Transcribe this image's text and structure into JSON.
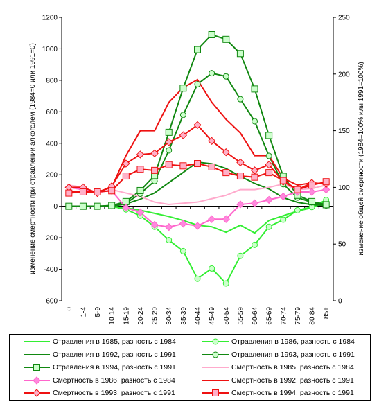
{
  "chart_data": {
    "type": "line",
    "categories": [
      "0",
      "1-4",
      "5-9",
      "10-14",
      "15-19",
      "20-24",
      "25-29",
      "30-34",
      "35-39",
      "40-44",
      "45-49",
      "50-54",
      "55-59",
      "60-64",
      "65-69",
      "70-74",
      "75-79",
      "80-84",
      "85+"
    ],
    "y_left": {
      "label": "изменение смертности при отравлении алкоголем (1984=0 или 1991=0)",
      "ylim": [
        -600,
        1200
      ],
      "ticks": [
        -600,
        -400,
        -200,
        0,
        200,
        400,
        600,
        800,
        1000,
        1200
      ]
    },
    "y_right": {
      "label": "изменение общей смертности (1984=100% или 1991=100%)",
      "ylim": [
        0,
        250
      ],
      "ticks": [
        0,
        50,
        100,
        150,
        200,
        250
      ]
    },
    "series": [
      {
        "name": "Отравления в 1985, разность с 1984",
        "axis": "left",
        "color": "#33ee33",
        "marker": "none",
        "values": [
          0,
          0,
          0,
          0,
          -10,
          -25,
          -45,
          -65,
          -90,
          -120,
          -130,
          -165,
          -120,
          -170,
          -90,
          -60,
          -30,
          -10,
          30
        ]
      },
      {
        "name": "Отравления в 1986, разность с 1984",
        "axis": "left",
        "color": "#33ee33",
        "marker": "circle",
        "values": [
          0,
          0,
          0,
          0,
          -20,
          -60,
          -130,
          -215,
          -285,
          -460,
          -395,
          -490,
          -315,
          -245,
          -130,
          -85,
          -25,
          -5,
          40
        ]
      },
      {
        "name": "Отравления в 1992, разность с 1991",
        "axis": "left",
        "color": "#118811",
        "marker": "none",
        "values": [
          0,
          0,
          0,
          0,
          15,
          45,
          85,
          150,
          215,
          280,
          270,
          240,
          190,
          145,
          110,
          55,
          25,
          10,
          5
        ]
      },
      {
        "name": "Отравления в 1993, разность с 1991",
        "axis": "left",
        "color": "#118811",
        "marker": "circle",
        "values": [
          0,
          0,
          0,
          5,
          20,
          80,
          160,
          355,
          580,
          775,
          845,
          825,
          680,
          540,
          320,
          140,
          55,
          25,
          5
        ]
      },
      {
        "name": "Отравления в 1994, разность с 1991",
        "axis": "left",
        "color": "#118811",
        "marker": "square",
        "values": [
          0,
          0,
          0,
          5,
          30,
          100,
          195,
          470,
          750,
          995,
          1090,
          1060,
          970,
          745,
          450,
          190,
          70,
          30,
          10
        ]
      },
      {
        "name": "Смертность в 1985, разность с 1984",
        "axis": "right",
        "color": "#ffaacc",
        "marker": "none",
        "values": [
          102,
          100,
          95,
          98,
          95,
          92,
          87,
          85,
          86,
          87,
          90,
          93,
          98,
          98,
          100,
          103,
          98,
          99,
          102
        ]
      },
      {
        "name": "Смертность в 1986, разность с 1984",
        "axis": "right",
        "color": "#ff66cc",
        "marker": "diamond",
        "values": [
          100,
          98,
          96,
          97,
          82,
          78,
          67,
          65,
          68,
          66,
          72,
          72,
          85,
          86,
          89,
          92,
          96,
          96,
          98
        ]
      },
      {
        "name": "Смертность в 1992, разность с 1991",
        "axis": "right",
        "color": "#ee1111",
        "marker": "none",
        "values": [
          96,
          96,
          96,
          100,
          128,
          150,
          150,
          175,
          188,
          195,
          175,
          160,
          148,
          128,
          128,
          108,
          102,
          104,
          103
        ]
      },
      {
        "name": "Смертность в 1993, разность с 1991",
        "axis": "right",
        "color": "#ee1111",
        "marker": "diamond",
        "values": [
          100,
          100,
          95,
          101,
          121,
          129,
          130,
          140,
          146,
          155,
          141,
          131,
          122,
          115,
          120,
          105,
          98,
          104,
          103
        ]
      },
      {
        "name": "Смертность в 1994, разность с 1991",
        "axis": "right",
        "color": "#ee1111",
        "marker": "square",
        "values": [
          95,
          96,
          96,
          97,
          110,
          116,
          115,
          120,
          119,
          121,
          118,
          113,
          110,
          109,
          113,
          106,
          98,
          102,
          105
        ]
      }
    ],
    "legend_position": "bottom",
    "grid": false
  }
}
